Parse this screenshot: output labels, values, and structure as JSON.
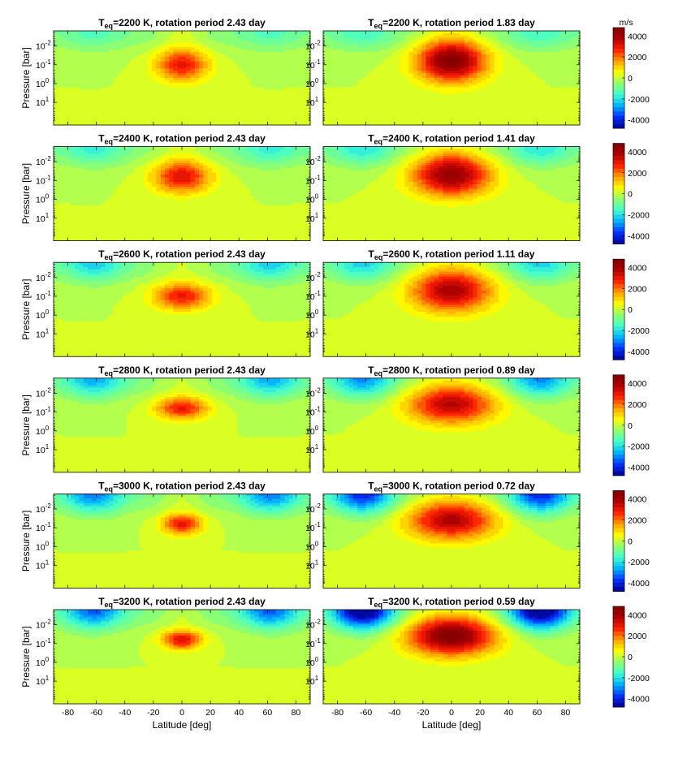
{
  "chart_data": {
    "type": "heatmap",
    "colorbar": {
      "unit": "m/s",
      "range": [
        -4800,
        4800
      ],
      "ticks": [
        4000,
        2000,
        0,
        -2000,
        -4000
      ],
      "colors": [
        "#00008f",
        "#0030ff",
        "#00b0ff",
        "#40ffd0",
        "#8fff70",
        "#ffff00",
        "#ffa000",
        "#ff2000",
        "#b00000",
        "#800000"
      ]
    },
    "ylabel": "Pressure [bar]",
    "xlabel": "Latitude [deg]",
    "x_ticks": [
      "-80",
      "-60",
      "-40",
      "-20",
      "0",
      "20",
      "40",
      "60",
      "80"
    ],
    "x_range": [
      -90,
      90
    ],
    "y_ticks": [
      {
        "base": "10",
        "exp": "-2"
      },
      {
        "base": "10",
        "exp": "-1"
      },
      {
        "base": "10",
        "exp": "0"
      },
      {
        "base": "10",
        "exp": "1"
      }
    ],
    "y_range_log10": [
      -2.8,
      2.2
    ],
    "panels": [
      {
        "title_pre": "T",
        "title_sub": "eq",
        "title_post": "=2200 K, rotation period 2.43 day",
        "jet_max": 3000,
        "jet_halfwidth_deg": 18,
        "jet_center_log_p": -1.0,
        "jet_depth_log_p": 0.85,
        "high_lat_min": -700
      },
      {
        "title_pre": "T",
        "title_sub": "eq",
        "title_post": "=2200 K, rotation period 1.83 day",
        "jet_max": 4700,
        "jet_halfwidth_deg": 24,
        "jet_center_log_p": -1.2,
        "jet_depth_log_p": 1.1,
        "high_lat_min": -900
      },
      {
        "title_pre": "T",
        "title_sub": "eq",
        "title_post": "=2400 K, rotation period 2.43 day",
        "jet_max": 3200,
        "jet_halfwidth_deg": 20,
        "jet_center_log_p": -1.2,
        "jet_depth_log_p": 0.85,
        "high_lat_min": -1100
      },
      {
        "title_pre": "T",
        "title_sub": "eq",
        "title_post": "=2400 K, rotation period 1.41 day",
        "jet_max": 4300,
        "jet_halfwidth_deg": 27,
        "jet_center_log_p": -1.3,
        "jet_depth_log_p": 1.1,
        "high_lat_min": -1300
      },
      {
        "title_pre": "T",
        "title_sub": "eq",
        "title_post": "=2600 K, rotation period 2.43 day",
        "jet_max": 2900,
        "jet_halfwidth_deg": 20,
        "jet_center_log_p": -1.0,
        "jet_depth_log_p": 0.7,
        "high_lat_min": -1600
      },
      {
        "title_pre": "T",
        "title_sub": "eq",
        "title_post": "=2600 K, rotation period 1.11 day",
        "jet_max": 3900,
        "jet_halfwidth_deg": 28,
        "jet_center_log_p": -1.3,
        "jet_depth_log_p": 1.1,
        "high_lat_min": -1500
      },
      {
        "title_pre": "T",
        "title_sub": "eq",
        "title_post": "=2800 K, rotation period 2.43 day",
        "jet_max": 2900,
        "jet_halfwidth_deg": 18,
        "jet_center_log_p": -1.2,
        "jet_depth_log_p": 0.6,
        "high_lat_min": -2000
      },
      {
        "title_pre": "T",
        "title_sub": "eq",
        "title_post": "=2800 K, rotation period 0.89 day",
        "jet_max": 3700,
        "jet_halfwidth_deg": 30,
        "jet_center_log_p": -1.4,
        "jet_depth_log_p": 1.0,
        "high_lat_min": -2300
      },
      {
        "title_pre": "T",
        "title_sub": "eq",
        "title_post": "=3000 K, rotation period 2.43 day",
        "jet_max": 3000,
        "jet_halfwidth_deg": 14,
        "jet_center_log_p": -1.2,
        "jet_depth_log_p": 0.55,
        "high_lat_min": -2400
      },
      {
        "title_pre": "T",
        "title_sub": "eq",
        "title_post": "=3000 K, rotation period 0.72 day",
        "jet_max": 3800,
        "jet_halfwidth_deg": 30,
        "jet_center_log_p": -1.4,
        "jet_depth_log_p": 1.0,
        "high_lat_min": -3300
      },
      {
        "title_pre": "T",
        "title_sub": "eq",
        "title_post": "=3200 K, rotation period 2.43 day",
        "jet_max": 3200,
        "jet_halfwidth_deg": 14,
        "jet_center_log_p": -1.2,
        "jet_depth_log_p": 0.5,
        "high_lat_min": -2700
      },
      {
        "title_pre": "T",
        "title_sub": "eq",
        "title_post": "=3200 K, rotation period 0.59 day",
        "jet_max": 4800,
        "jet_halfwidth_deg": 30,
        "jet_center_log_p": -1.4,
        "jet_depth_log_p": 1.0,
        "high_lat_min": -4800
      }
    ]
  }
}
